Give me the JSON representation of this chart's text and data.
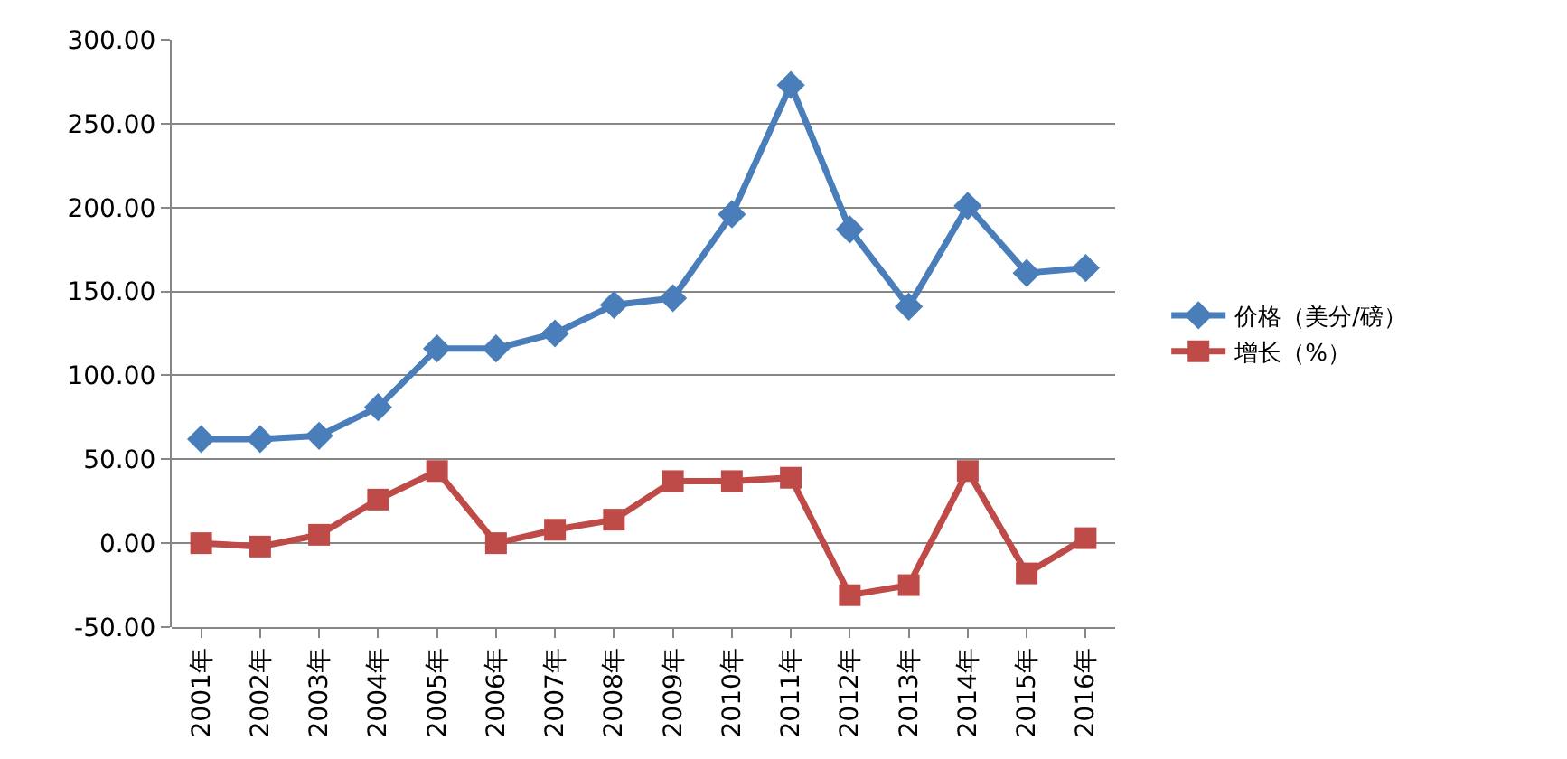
{
  "chart_data": {
    "type": "line",
    "categories": [
      "2001年",
      "2002年",
      "2003年",
      "2004年",
      "2005年",
      "2006年",
      "2007年",
      "2008年",
      "2009年",
      "2010年",
      "2011年",
      "2012年",
      "2013年",
      "2014年",
      "2015年",
      "2016年"
    ],
    "series": [
      {
        "name": "价格（美分/磅）",
        "color": "#4a7ebb",
        "marker": "diamond",
        "values": [
          62,
          62,
          64,
          81,
          116,
          116,
          125,
          142,
          146,
          196,
          273,
          187,
          141,
          201,
          161,
          164
        ]
      },
      {
        "name": "增长（%）",
        "color": "#be4b48",
        "marker": "square",
        "values": [
          0,
          -2,
          5,
          26,
          43,
          0,
          8,
          14,
          37,
          37,
          39,
          -31,
          -25,
          43,
          -18,
          3
        ]
      }
    ],
    "ylim": [
      -50,
      300
    ],
    "yticks": [
      {
        "value": -50,
        "label": "-50.00"
      },
      {
        "value": 0,
        "label": "0.00"
      },
      {
        "value": 50,
        "label": "50.00"
      },
      {
        "value": 100,
        "label": "100.00"
      },
      {
        "value": 150,
        "label": "150.00"
      },
      {
        "value": 200,
        "label": "200.00"
      },
      {
        "value": 250,
        "label": "250.00"
      },
      {
        "value": 300,
        "label": "300.00"
      }
    ],
    "grid": "y",
    "legend": "right",
    "line_style": "solid"
  }
}
